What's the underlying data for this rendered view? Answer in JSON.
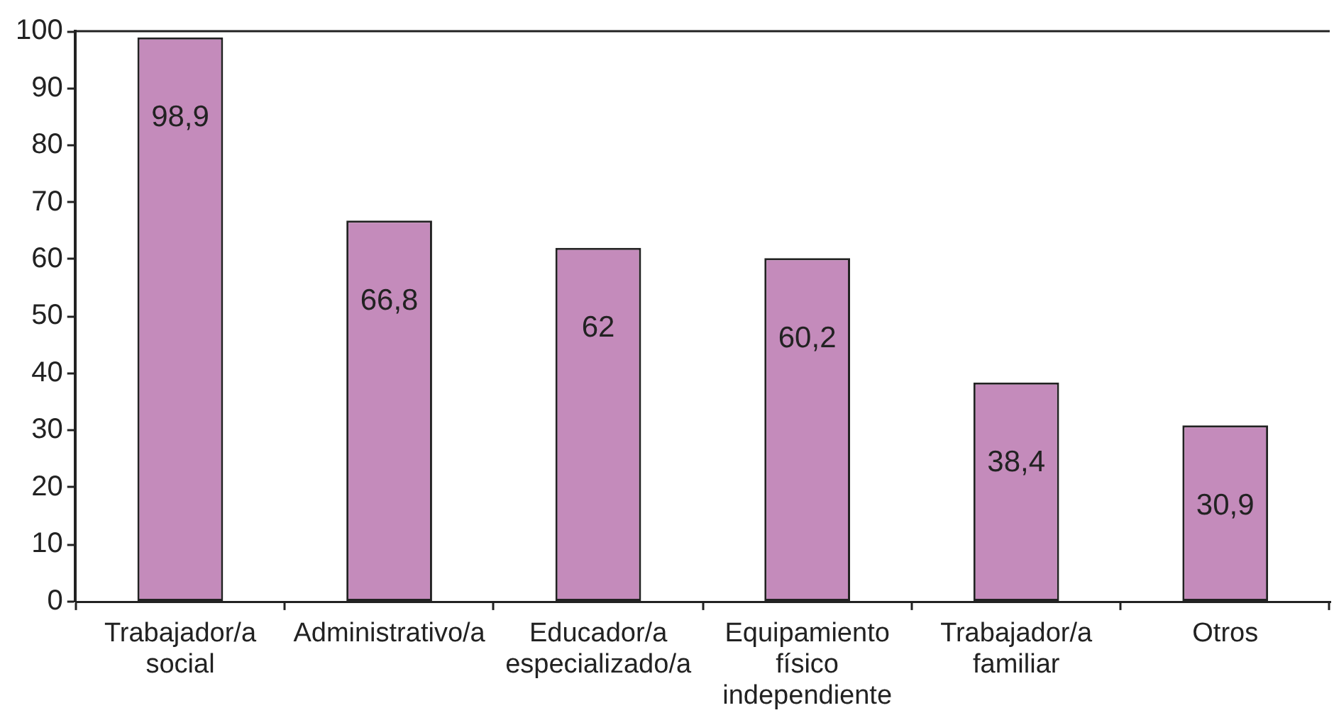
{
  "chart_data": {
    "type": "bar",
    "categories": [
      "Trabajador/a social",
      "Administrativo/a",
      "Educador/a especializado/a",
      "Equipamiento físico independiente",
      "Trabajador/a familiar",
      "Otros"
    ],
    "values": [
      98.9,
      66.8,
      62,
      60.2,
      38.4,
      30.9
    ],
    "value_labels": [
      "98,9",
      "66,8",
      "62",
      "60,2",
      "38,4",
      "30,9"
    ],
    "color": "#c48bbb",
    "ylim": [
      0,
      100
    ],
    "yticks": [
      0,
      10,
      20,
      30,
      40,
      50,
      60,
      70,
      80,
      90,
      100
    ],
    "grid": false
  }
}
